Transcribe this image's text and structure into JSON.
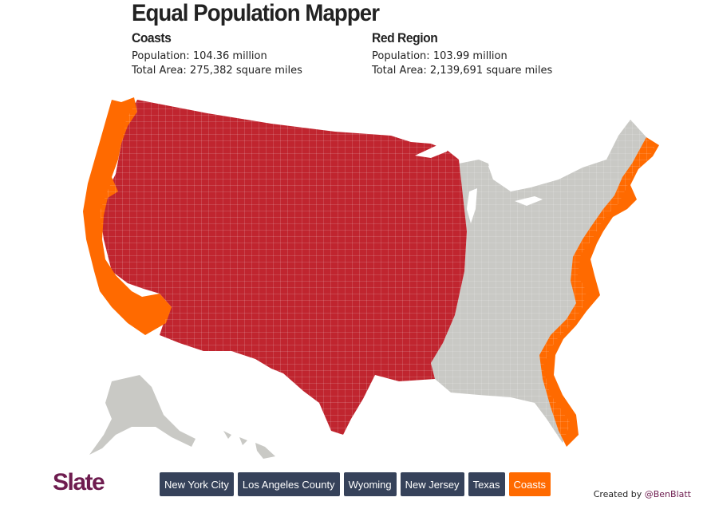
{
  "title": "Equal Population Mapper",
  "left_region": {
    "name": "Coasts",
    "population": "Population: 104.36 million",
    "area": "Total Area: 275,382 square miles"
  },
  "right_region": {
    "name": "Red Region",
    "population": "Population: 103.99 million",
    "area": "Total Area: 2,139,691 square miles"
  },
  "logo": "Slate",
  "buttons": [
    {
      "label": "New York City"
    },
    {
      "label": "Los Angeles County"
    },
    {
      "label": "Wyoming"
    },
    {
      "label": "New Jersey"
    },
    {
      "label": "Texas"
    },
    {
      "label": "Coasts"
    }
  ],
  "active_button": "Coasts",
  "credit": {
    "prefix": "Created by",
    "author": "@BenBlatt"
  },
  "colors": {
    "red_region": "#c0252f",
    "coasts": "#ff6a00",
    "other": "#c9c9c5",
    "button": "#36425a",
    "logo": "#6e1c4f"
  }
}
